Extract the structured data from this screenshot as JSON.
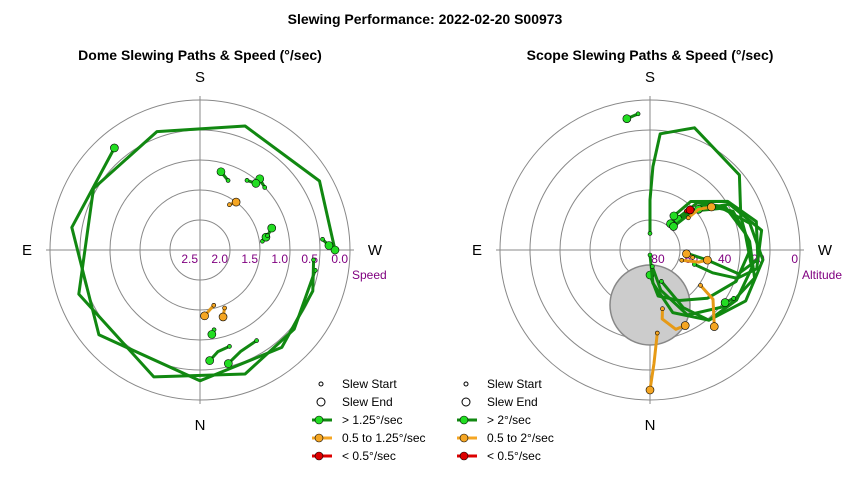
{
  "title": "Slewing Performance: 2022-02-20 S00973",
  "colors": {
    "fast": "#22aa22",
    "fastLine": "#118811",
    "mid": "#f5a623",
    "midLine": "#e69a16",
    "slow": "#dd0000",
    "ring": "#888888",
    "tick": "#800080",
    "zenith": "#cccccc"
  },
  "chart_data": [
    {
      "type": "polar-scatter",
      "title": "Dome Slewing Paths & Speed (°/sec)",
      "cardinals": {
        "top": "S",
        "bottom": "N",
        "left": "E",
        "right": "W"
      },
      "radial_label": "Speed",
      "radial_ticks": [
        "2.5",
        "2.0",
        "1.5",
        "1.0",
        "0.5",
        "0.0"
      ],
      "radial_range": [
        0,
        2.5
      ],
      "legend": [
        "Slew Start",
        "Slew End",
        "> 1.25°/sec",
        "0.5 to 1.25°/sec",
        "< 0.5°/sec"
      ],
      "paths": [
        {
          "speed": "mid",
          "points": [
            [
              166,
              1.55
            ],
            [
              176,
              1.4
            ]
          ]
        },
        {
          "speed": "mid",
          "points": [
            [
              157,
              1.45
            ],
            [
              161,
              1.32
            ]
          ]
        },
        {
          "speed": "fast",
          "points": [
            [
              170,
              1.15
            ],
            [
              172,
              1.08
            ]
          ]
        },
        {
          "speed": "fast",
          "points": [
            [
              163,
              0.82
            ],
            [
              170,
              0.78
            ],
            [
              175,
              0.65
            ]
          ]
        },
        {
          "speed": "fast",
          "points": [
            [
              148,
              0.72
            ],
            [
              158,
              0.68
            ],
            [
              166,
              0.55
            ]
          ]
        },
        {
          "speed": "fast",
          "points": [
            [
              100,
              0.55
            ],
            [
              130,
              0.45
            ],
            [
              160,
              0.3
            ],
            [
              200,
              0.25
            ],
            [
              250,
              0.35
            ],
            [
              300,
              0.45
            ],
            [
              340,
              0.4
            ],
            [
              20,
              0.3
            ],
            [
              60,
              0.2
            ],
            [
              90,
              0.25
            ]
          ]
        },
        {
          "speed": "fast",
          "points": [
            [
              95,
              0.6
            ],
            [
              110,
              0.5
            ],
            [
              140,
              0.38
            ],
            [
              180,
              0.32
            ],
            [
              230,
              0.3
            ],
            [
              280,
              0.33
            ],
            [
              320,
              0.28
            ]
          ]
        },
        {
          "speed": "fast",
          "points": [
            [
              82,
              1.45
            ],
            [
              79,
              1.38
            ]
          ]
        },
        {
          "speed": "fast",
          "points": [
            [
              78,
              1.35
            ],
            [
              73,
              1.25
            ]
          ]
        },
        {
          "speed": "fast",
          "points": [
            [
              46,
              1.0
            ],
            [
              40,
              0.95
            ]
          ]
        },
        {
          "speed": "fast",
          "points": [
            [
              34,
              1.1
            ],
            [
              40,
              1.05
            ]
          ]
        },
        {
          "speed": "fast",
          "points": [
            [
              22,
              1.25
            ],
            [
              15,
              1.15
            ]
          ]
        },
        {
          "speed": "mid",
          "points": [
            [
              33,
              1.6
            ],
            [
              37,
              1.5
            ]
          ]
        },
        {
          "speed": "fast",
          "points": [
            [
              85,
              0.45
            ],
            [
              88,
              0.35
            ]
          ]
        }
      ]
    },
    {
      "type": "polar-scatter",
      "title": "Scope Slewing Paths & Speed (°/sec)",
      "cardinals": {
        "top": "S",
        "bottom": "N",
        "left": "E",
        "right": "W"
      },
      "radial_label": "Altitude",
      "radial_ticks": [
        "80",
        "60",
        "40",
        "20",
        "0"
      ],
      "radial_range": [
        90,
        0
      ],
      "legend": [
        "Slew Start",
        "Slew End",
        "> 2°/sec",
        "0.5 to 2°/sec",
        "< 0.5°/sec"
      ],
      "paths": [
        {
          "speed": "fast",
          "points": [
            [
              0,
              10
            ],
            [
              0,
              30
            ],
            [
              2,
              50
            ],
            [
              5,
              70
            ],
            [
              20,
              78
            ],
            [
              50,
              70
            ],
            [
              70,
              58
            ],
            [
              90,
              60
            ],
            [
              110,
              55
            ],
            [
              130,
              45
            ],
            [
              150,
              35
            ],
            [
              170,
              28
            ],
            [
              180,
              15
            ]
          ]
        },
        {
          "speed": "fast",
          "points": [
            [
              180,
              3
            ],
            [
              175,
              20
            ],
            [
              160,
              40
            ],
            [
              140,
              55
            ],
            [
              120,
              60
            ],
            [
              100,
              62
            ],
            [
              80,
              58
            ],
            [
              60,
              52
            ],
            [
              45,
              40
            ],
            [
              38,
              20
            ]
          ]
        },
        {
          "speed": "fast",
          "points": [
            [
              172,
              10
            ],
            [
              165,
              25
            ],
            [
              150,
              45
            ],
            [
              125,
              58
            ],
            [
              105,
              65
            ],
            [
              85,
              60
            ],
            [
              65,
              55
            ],
            [
              50,
              42
            ],
            [
              42,
              25
            ]
          ]
        },
        {
          "speed": "fast",
          "points": [
            [
              160,
              20
            ],
            [
              150,
              40
            ],
            [
              140,
              55
            ],
            [
              118,
              65
            ],
            [
              95,
              68
            ],
            [
              75,
              62
            ],
            [
              60,
              50
            ],
            [
              48,
              35
            ],
            [
              45,
              20
            ]
          ]
        },
        {
          "speed": "fast",
          "points": [
            [
              108,
              28
            ],
            [
              110,
              40
            ],
            [
              108,
              55
            ],
            [
              100,
              65
            ],
            [
              80,
              68
            ],
            [
              60,
              55
            ],
            [
              50,
              38
            ]
          ]
        },
        {
          "speed": "fast",
          "points": [
            [
              95,
              22
            ],
            [
              100,
              35
            ],
            [
              105,
              55
            ],
            [
              95,
              65
            ],
            [
              75,
              66
            ],
            [
              58,
              55
            ],
            [
              40,
              38
            ],
            [
              35,
              25
            ]
          ]
        },
        {
          "speed": "mid",
          "points": [
            [
              108,
              20
            ],
            [
              104,
              30
            ],
            [
              100,
              35
            ]
          ]
        },
        {
          "speed": "mid",
          "points": [
            [
              100,
              26
            ],
            [
              96,
              22
            ]
          ]
        },
        {
          "speed": "mid",
          "points": [
            [
              168,
              36
            ],
            [
              170,
              42
            ],
            [
              162,
              50
            ],
            [
              155,
              50
            ]
          ]
        },
        {
          "speed": "mid",
          "points": [
            [
              125,
              37
            ],
            [
              128,
              48
            ],
            [
              140,
              60
            ]
          ]
        },
        {
          "speed": "mid",
          "points": [
            [
              175,
              50
            ],
            [
              178,
              68
            ],
            [
              180,
              84
            ]
          ]
        },
        {
          "speed": "mid",
          "points": [
            [
              50,
              30
            ],
            [
              50,
              38
            ],
            [
              55,
              45
            ]
          ]
        },
        {
          "speed": "slow",
          "points": [
            [
              43,
              32
            ],
            [
              45,
              34
            ]
          ]
        },
        {
          "speed": "fast",
          "points": [
            [
              -5,
              82
            ],
            [
              -10,
              80
            ]
          ]
        },
        {
          "speed": "fast",
          "points": [
            [
              120,
              58
            ],
            [
              125,
              55
            ]
          ]
        }
      ]
    }
  ]
}
